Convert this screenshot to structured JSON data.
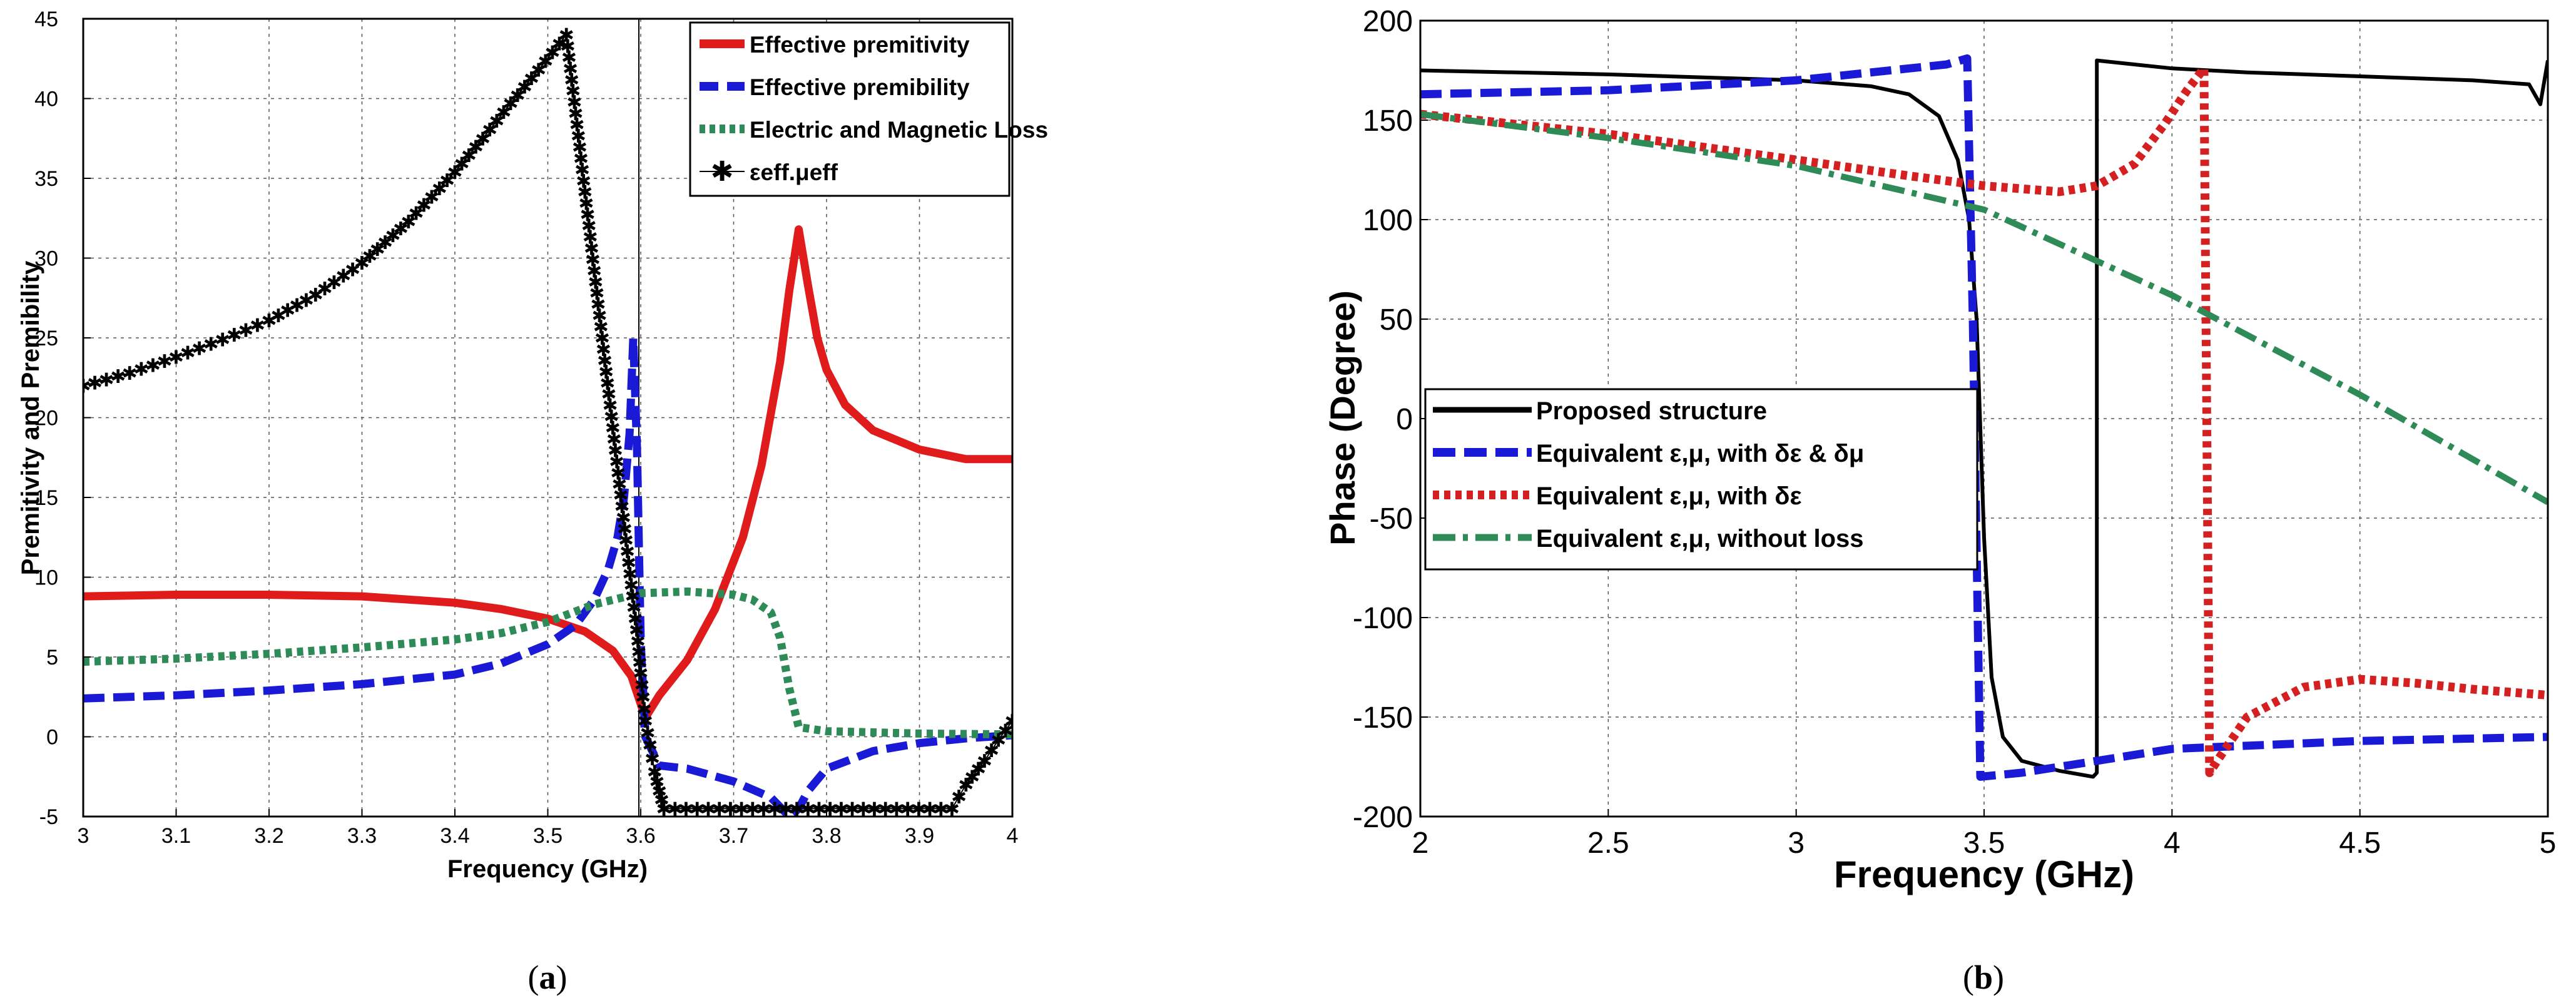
{
  "chart_data": [
    {
      "type": "line",
      "panel_label_prefix": "(",
      "panel_label_letter": "a",
      "panel_label_suffix": ")",
      "xlabel": "Frequency (GHz)",
      "ylabel": "Premitivity and Premibility",
      "xlim": [
        3,
        4
      ],
      "ylim": [
        -5,
        45
      ],
      "xticks": [
        "3",
        "3.1",
        "3.2",
        "3.3",
        "3.4",
        "3.5",
        "3.6",
        "3.7",
        "3.8",
        "3.9",
        "4"
      ],
      "yticks": [
        "-5",
        "0",
        "5",
        "10",
        "15",
        "20",
        "25",
        "30",
        "35",
        "40",
        "45"
      ],
      "grid": true,
      "legend": "top-right",
      "vline_x": 3.598,
      "series": [
        {
          "name": "Effective premitivity",
          "color": "#e01b1b",
          "style": "solid",
          "x": [
            3,
            3.1,
            3.2,
            3.3,
            3.4,
            3.45,
            3.5,
            3.54,
            3.57,
            3.59,
            3.605,
            3.62,
            3.65,
            3.68,
            3.71,
            3.73,
            3.75,
            3.76,
            3.77,
            3.78,
            3.79,
            3.8,
            3.82,
            3.85,
            3.9,
            3.95,
            4
          ],
          "y": [
            8.8,
            8.9,
            8.9,
            8.8,
            8.4,
            8.0,
            7.4,
            6.6,
            5.4,
            3.8,
            1.2,
            2.6,
            4.8,
            8.0,
            12.5,
            17.0,
            23.5,
            28.0,
            31.8,
            28.3,
            25.0,
            23.0,
            20.8,
            19.2,
            18.0,
            17.4,
            17.4
          ]
        },
        {
          "name": "Effective premibility",
          "color": "#1a1ad6",
          "style": "dashed",
          "x": [
            3,
            3.1,
            3.2,
            3.3,
            3.4,
            3.45,
            3.5,
            3.53,
            3.55,
            3.565,
            3.575,
            3.582,
            3.588,
            3.592,
            3.596,
            3.6,
            3.605,
            3.62,
            3.65,
            3.7,
            3.74,
            3.76,
            3.77,
            3.78,
            3.8,
            3.85,
            3.9,
            3.95,
            4
          ],
          "y": [
            2.4,
            2.6,
            2.9,
            3.3,
            3.9,
            4.6,
            5.8,
            7.0,
            8.6,
            10.5,
            12.5,
            15.0,
            19.0,
            25.0,
            18.0,
            6.0,
            0.0,
            -1.8,
            -2.0,
            -2.8,
            -3.8,
            -5.0,
            -4.5,
            -3.4,
            -2.0,
            -0.9,
            -0.4,
            -0.1,
            0.1
          ]
        },
        {
          "name": "Electric and Magnetic Loss",
          "color": "#2e8b57",
          "style": "dotted",
          "x": [
            3,
            3.1,
            3.2,
            3.3,
            3.4,
            3.45,
            3.5,
            3.55,
            3.6,
            3.65,
            3.7,
            3.72,
            3.74,
            3.75,
            3.76,
            3.77,
            3.8,
            3.9,
            4
          ],
          "y": [
            4.7,
            4.9,
            5.2,
            5.6,
            6.1,
            6.5,
            7.2,
            8.3,
            9.0,
            9.1,
            8.9,
            8.6,
            7.8,
            6.2,
            3.0,
            0.6,
            0.35,
            0.2,
            0.15
          ]
        },
        {
          "name": "εeff.μeff",
          "color": "#000000",
          "style": "line-star",
          "x": [
            3,
            3.05,
            3.1,
            3.15,
            3.2,
            3.25,
            3.3,
            3.35,
            3.4,
            3.43,
            3.46,
            3.49,
            3.52,
            3.597,
            3.6,
            3.605,
            3.61,
            3.615,
            3.62,
            3.625,
            3.935,
            3.95,
            3.97,
            3.985,
            4
          ],
          "y": [
            22.0,
            22.8,
            23.8,
            24.9,
            26.1,
            27.7,
            29.7,
            32.3,
            35.4,
            37.5,
            39.7,
            41.8,
            44.0,
            6.0,
            4.0,
            1.0,
            -0.5,
            -2.2,
            -3.4,
            -4.5,
            -4.5,
            -3.0,
            -1.5,
            -0.2,
            1.0
          ]
        }
      ]
    },
    {
      "type": "line",
      "panel_label_prefix": "(",
      "panel_label_letter": "b",
      "panel_label_suffix": ")",
      "xlabel": "Frequency (GHz)",
      "ylabel": "Phase (Degree)",
      "xlim": [
        2,
        5
      ],
      "ylim": [
        -200,
        200
      ],
      "xticks": [
        "2",
        "2.5",
        "3",
        "3.5",
        "4",
        "4.5",
        "5"
      ],
      "yticks": [
        "-200",
        "-150",
        "-100",
        "-50",
        "0",
        "50",
        "100",
        "150",
        "200"
      ],
      "grid": true,
      "legend": "center-left",
      "series": [
        {
          "name": "Proposed structure",
          "color": "#000000",
          "style": "solid",
          "x": [
            2,
            2.5,
            3,
            3.2,
            3.3,
            3.38,
            3.43,
            3.46,
            3.48,
            3.5,
            3.52,
            3.55,
            3.6,
            3.7,
            3.79,
            3.8,
            3.8,
            3.9,
            4,
            4.2,
            4.5,
            4.8,
            4.95,
            4.98,
            5
          ],
          "y": [
            175,
            173,
            170,
            167,
            163,
            152,
            130,
            100,
            50,
            -60,
            -130,
            -160,
            -172,
            -177,
            -180,
            -178,
            180,
            178,
            176,
            174,
            172,
            170,
            168,
            158,
            180
          ]
        },
        {
          "name": "Equivalent ε,μ, with δε & δμ",
          "color": "#1a1ad6",
          "style": "dashed",
          "x": [
            2,
            2.5,
            3,
            3.2,
            3.4,
            3.455,
            3.47,
            3.49,
            3.6,
            3.8,
            4,
            4.5,
            5
          ],
          "y": [
            163,
            165,
            170,
            174,
            178,
            181,
            50,
            -180,
            -178,
            -172,
            -166,
            -162,
            -160
          ]
        },
        {
          "name": "Equivalent ε,μ, with δε",
          "color": "#d42020",
          "style": "dotted",
          "x": [
            2,
            2.5,
            3,
            3.3,
            3.5,
            3.7,
            3.8,
            3.9,
            3.98,
            4.04,
            4.085,
            4.1,
            4.12,
            4.2,
            4.35,
            4.5,
            4.65,
            4.8,
            5
          ],
          "y": [
            153,
            143,
            130,
            122,
            117,
            114,
            117,
            128,
            148,
            165,
            176,
            -178,
            -172,
            -150,
            -135,
            -131,
            -133,
            -136,
            -139
          ]
        },
        {
          "name": "Equivalent ε,μ, without loss",
          "color": "#2e8b57",
          "style": "dashdot",
          "x": [
            2,
            2.5,
            3,
            3.5,
            4,
            4.5,
            5
          ],
          "y": [
            153,
            141,
            127,
            105,
            62,
            12,
            -42
          ]
        }
      ]
    }
  ]
}
